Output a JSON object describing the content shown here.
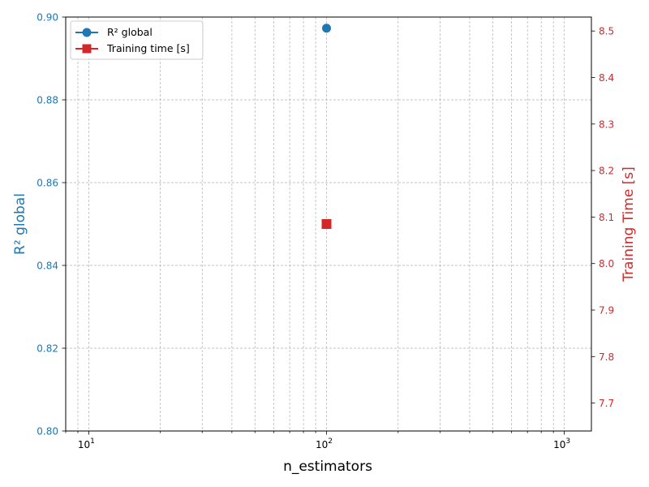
{
  "chart_data": {
    "type": "scatter",
    "xlabel": "n_estimators",
    "x_scale": "log",
    "xlim": [
      8,
      1300
    ],
    "x_ticks": [
      {
        "value": 10,
        "base": "10",
        "exp": "1"
      },
      {
        "value": 100,
        "base": "10",
        "exp": "2"
      },
      {
        "value": 1000,
        "base": "10",
        "exp": "3"
      }
    ],
    "y_left": {
      "label": "R² global",
      "color": "#1f77b4",
      "lim": [
        0.8,
        0.9
      ],
      "ticks": [
        "0.80",
        "0.82",
        "0.84",
        "0.86",
        "0.88",
        "0.90"
      ]
    },
    "y_right": {
      "label": "Training Time [s]",
      "color": "#d62728",
      "lim": [
        7.64,
        8.53
      ],
      "ticks": [
        "7.7",
        "7.8",
        "7.9",
        "8.0",
        "8.1",
        "8.2",
        "8.3",
        "8.4",
        "8.5"
      ]
    },
    "series": [
      {
        "name": "R² global",
        "axis": "left",
        "marker": "circle",
        "color": "#1f77b4",
        "x": [
          100
        ],
        "y": [
          0.8973
        ]
      },
      {
        "name": "Training time [s]",
        "axis": "right",
        "marker": "square",
        "color": "#d62728",
        "x": [
          100
        ],
        "y": [
          8.085
        ]
      }
    ],
    "grid": true,
    "legend": "upper-left"
  }
}
